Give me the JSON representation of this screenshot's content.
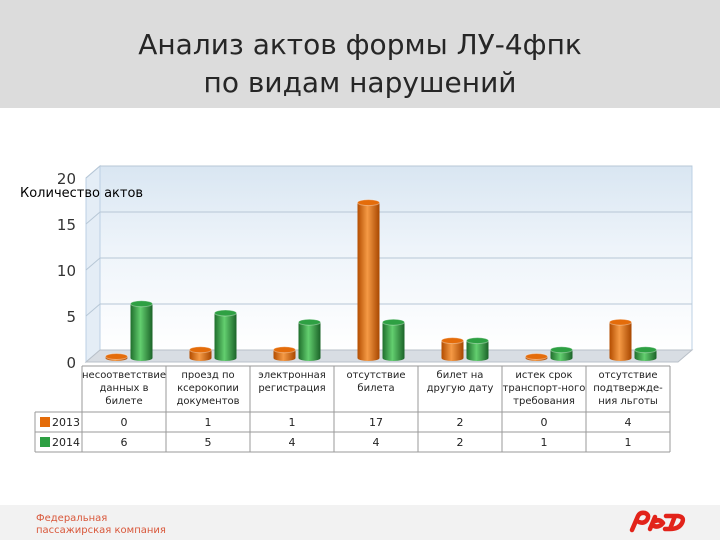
{
  "slide": {
    "title_line1": "Анализ актов формы ЛУ-4фпк",
    "title_line2": "по видам нарушений",
    "company_line1": "Федеральная",
    "company_line2": "пассажирская компания"
  },
  "logo": {
    "name": "rzd-logo",
    "color": "#e2231a"
  },
  "chart_data": {
    "type": "bar",
    "title": "",
    "ylabel": "Количество актов",
    "ylim": [
      0,
      20
    ],
    "yticks": [
      0,
      5,
      10,
      15,
      20
    ],
    "grid": true,
    "categories": [
      [
        "несоответствие",
        "данных в",
        "билете"
      ],
      [
        "проезд по",
        "ксерокопии",
        "документов"
      ],
      [
        "электронная",
        "регистрация"
      ],
      [
        "отсутствие",
        "билета"
      ],
      [
        "билет на",
        "другую дату"
      ],
      [
        "истек срок",
        "транспорт-ного",
        "требования"
      ],
      [
        "отсутствие",
        "подтвержде-",
        "ния льготы"
      ]
    ],
    "series": [
      {
        "name": "2013",
        "color": "#e46c0a",
        "values": [
          0,
          1,
          1,
          17,
          2,
          0,
          4
        ]
      },
      {
        "name": "2014",
        "color": "#2ea043",
        "values": [
          6,
          5,
          4,
          4,
          2,
          1,
          1
        ]
      }
    ]
  }
}
